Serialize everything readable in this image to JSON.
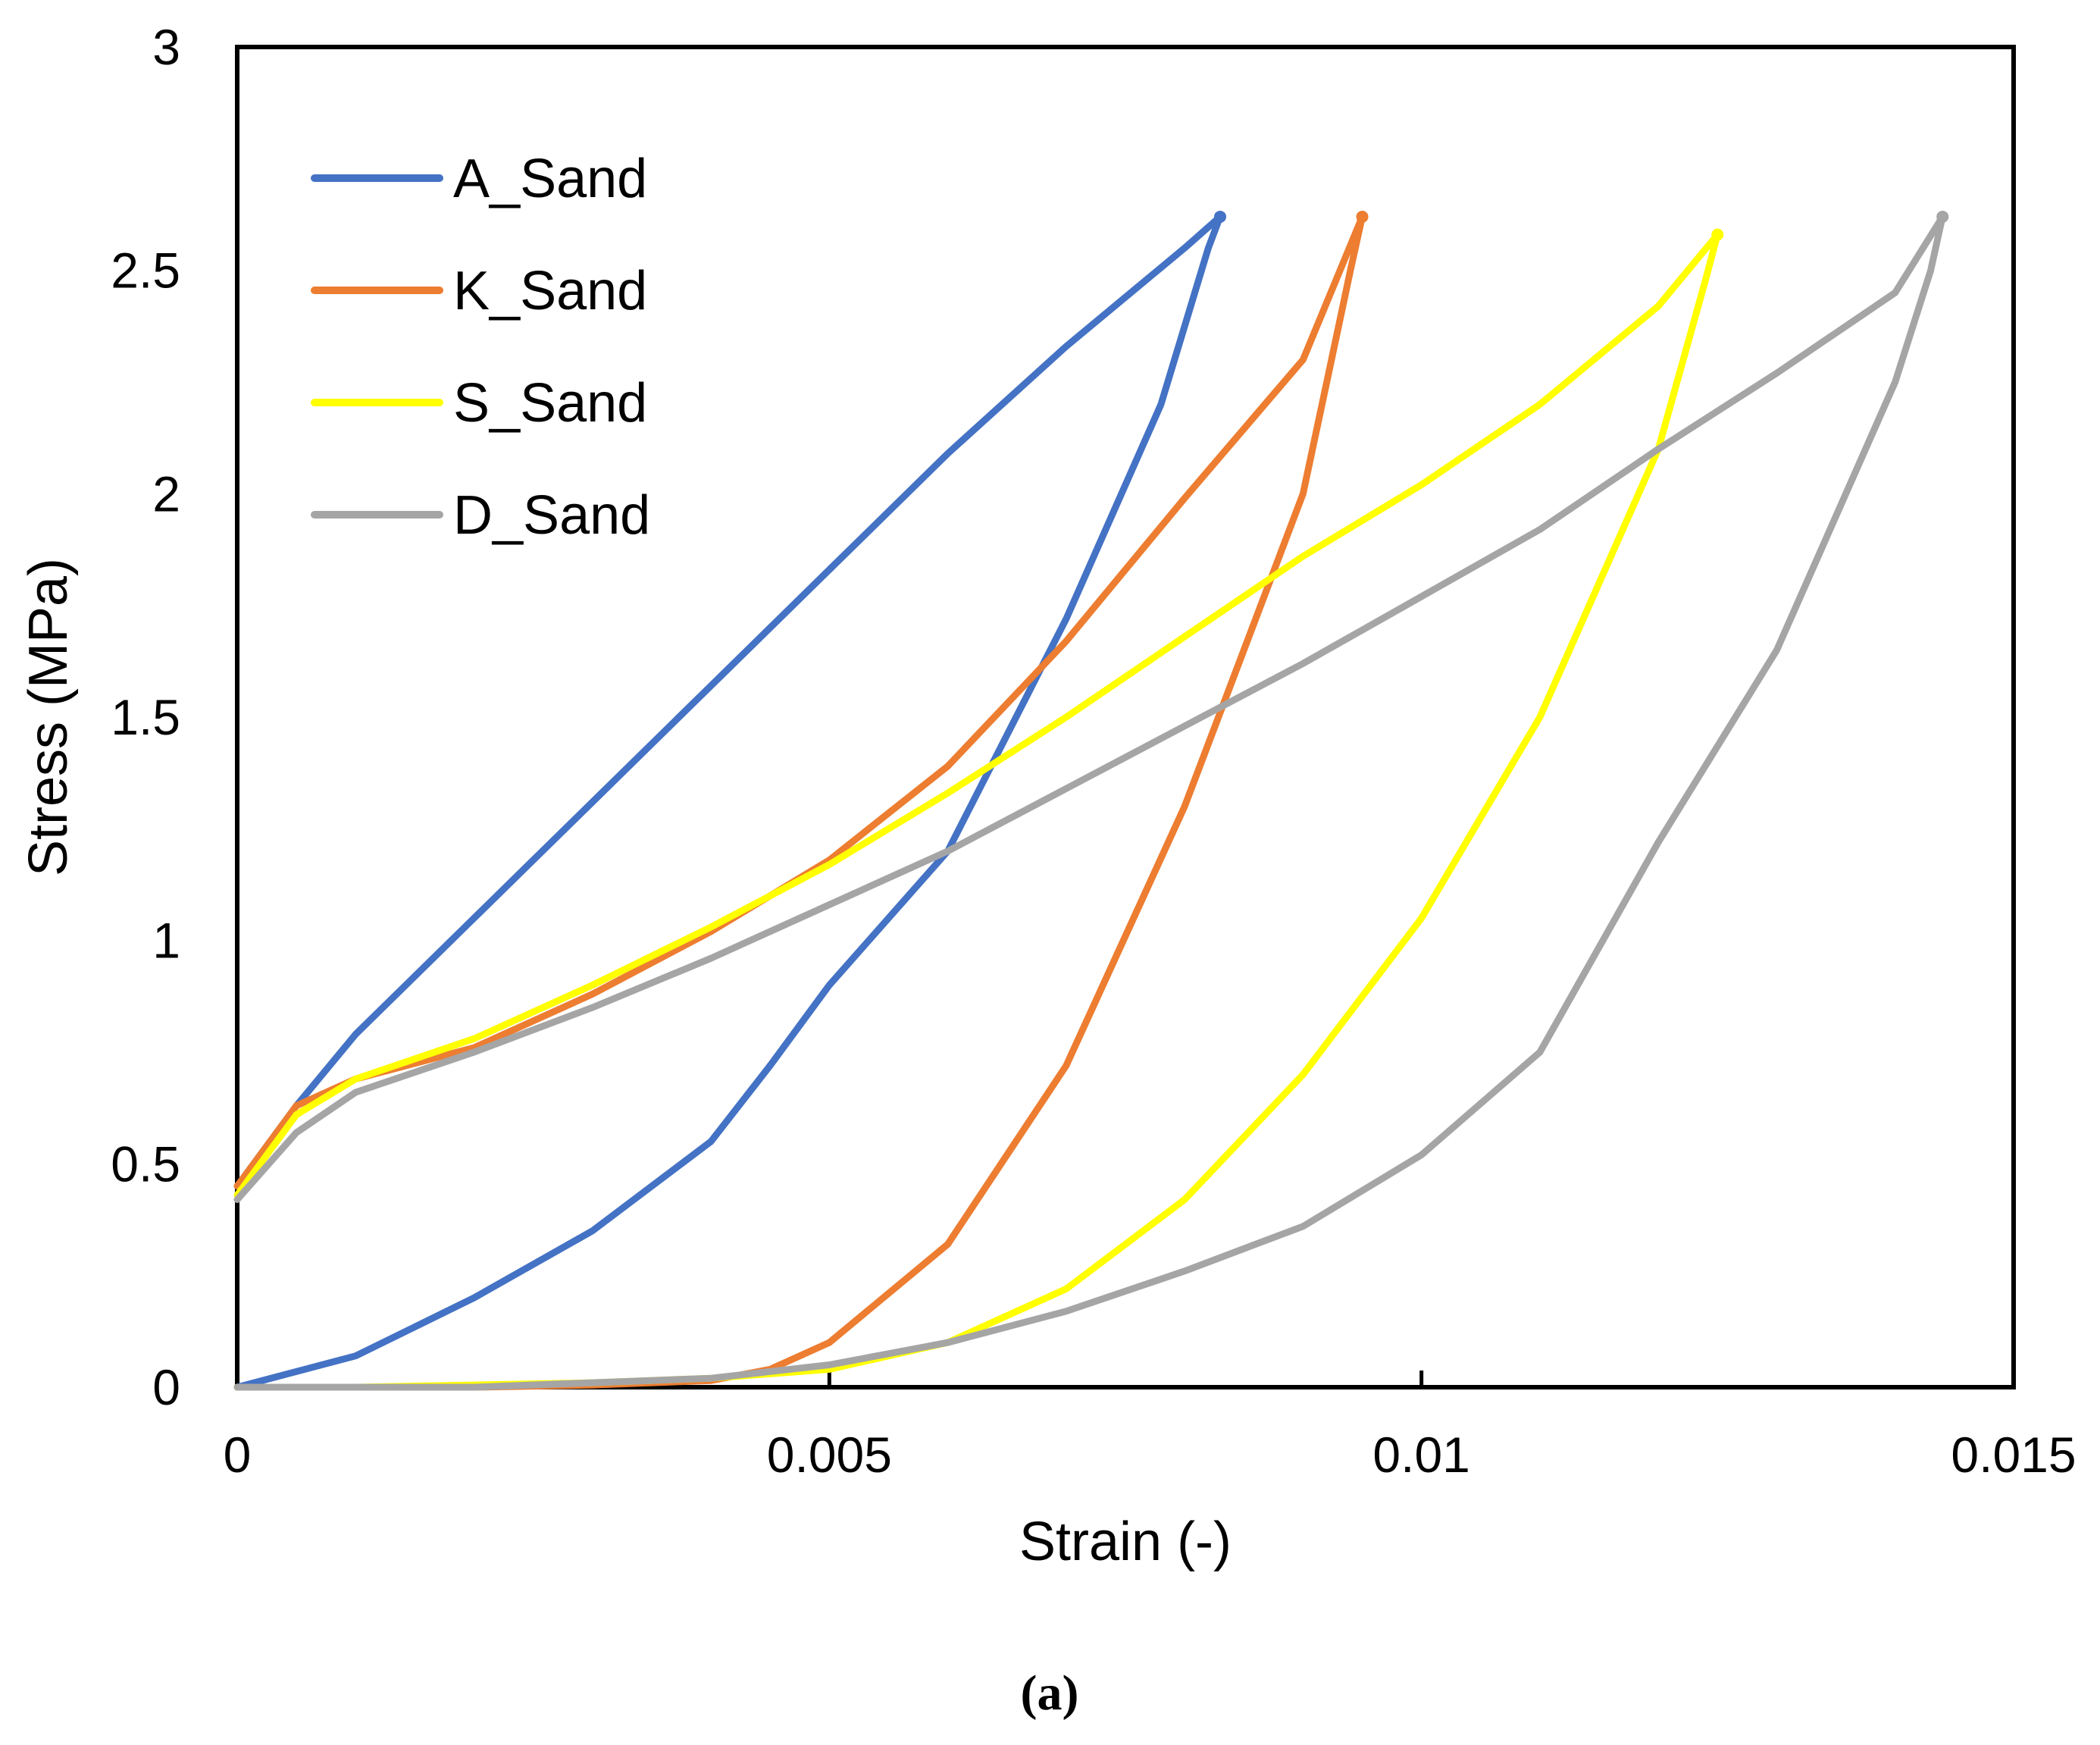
{
  "caption": "(a)",
  "chart_data": {
    "type": "line",
    "title": "",
    "xlabel": "Strain (-)",
    "ylabel": "Stress (MPa)",
    "xlim": [
      0,
      0.015
    ],
    "ylim": [
      0,
      3
    ],
    "x_ticks": [
      0,
      0.005,
      0.01,
      0.015
    ],
    "x_tick_labels": [
      "0",
      "0.005",
      "0.01",
      "0.015"
    ],
    "y_ticks": [
      0,
      0.5,
      1,
      1.5,
      2,
      2.5,
      3
    ],
    "y_tick_labels": [
      "0",
      "0.5",
      "1",
      "1.5",
      "2",
      "2.5",
      "3"
    ],
    "grid": false,
    "legend_position": "top-left",
    "series": [
      {
        "name": "A_Sand",
        "color": "#4472C4",
        "x": [
          0,
          0.0005,
          0.001,
          0.0015,
          0.002,
          0.003,
          0.004,
          0.005,
          0.006,
          0.007,
          0.008,
          0.0083,
          0.0082,
          0.0078,
          0.007,
          0.006,
          0.005,
          0.0045,
          0.004,
          0.003,
          0.002,
          0.001,
          0
        ],
        "y": [
          0.45,
          0.63,
          0.79,
          0.92,
          1.05,
          1.31,
          1.57,
          1.83,
          2.09,
          2.33,
          2.55,
          2.62,
          2.55,
          2.2,
          1.72,
          1.2,
          0.9,
          0.72,
          0.55,
          0.35,
          0.2,
          0.07,
          0
        ],
        "end_marker": true
      },
      {
        "name": "K_Sand",
        "color": "#ED7D31",
        "x": [
          0,
          0.0005,
          0.001,
          0.002,
          0.003,
          0.004,
          0.005,
          0.006,
          0.007,
          0.008,
          0.009,
          0.0095,
          0.0094,
          0.0092,
          0.009,
          0.0085,
          0.008,
          0.007,
          0.006,
          0.005,
          0.0045,
          0.004,
          0.003,
          0.002,
          0.001,
          0
        ],
        "y": [
          0.45,
          0.63,
          0.69,
          0.76,
          0.88,
          1.02,
          1.18,
          1.39,
          1.67,
          1.99,
          2.3,
          2.62,
          2.5,
          2.25,
          2.0,
          1.65,
          1.3,
          0.72,
          0.32,
          0.1,
          0.04,
          0.015,
          0.005,
          0,
          0,
          0
        ],
        "end_marker": true
      },
      {
        "name": "S_Sand",
        "color": "#FFFF00",
        "x": [
          0,
          0.0005,
          0.001,
          0.002,
          0.003,
          0.004,
          0.005,
          0.006,
          0.007,
          0.008,
          0.009,
          0.01,
          0.011,
          0.012,
          0.0125,
          0.0124,
          0.012,
          0.011,
          0.01,
          0.009,
          0.008,
          0.007,
          0.006,
          0.005,
          0.004,
          0.003,
          0.002,
          0.001,
          0
        ],
        "y": [
          0.43,
          0.61,
          0.69,
          0.78,
          0.9,
          1.03,
          1.17,
          1.33,
          1.5,
          1.68,
          1.86,
          2.02,
          2.2,
          2.42,
          2.58,
          2.48,
          2.1,
          1.5,
          1.05,
          0.7,
          0.42,
          0.22,
          0.1,
          0.04,
          0.02,
          0.01,
          0.005,
          0,
          0
        ],
        "end_marker": true
      },
      {
        "name": "D_Sand",
        "color": "#A5A5A5",
        "x": [
          0,
          0.0005,
          0.001,
          0.002,
          0.003,
          0.004,
          0.005,
          0.006,
          0.007,
          0.008,
          0.009,
          0.01,
          0.011,
          0.012,
          0.013,
          0.014,
          0.0144,
          0.0143,
          0.014,
          0.013,
          0.012,
          0.011,
          0.01,
          0.009,
          0.008,
          0.007,
          0.006,
          0.005,
          0.004,
          0.003,
          0.002,
          0.001,
          0
        ],
        "y": [
          0.42,
          0.57,
          0.66,
          0.75,
          0.85,
          0.96,
          1.08,
          1.2,
          1.34,
          1.48,
          1.62,
          1.77,
          1.92,
          2.1,
          2.27,
          2.45,
          2.62,
          2.5,
          2.25,
          1.65,
          1.22,
          0.75,
          0.52,
          0.36,
          0.26,
          0.17,
          0.1,
          0.05,
          0.02,
          0.01,
          0,
          0,
          0
        ],
        "end_marker": true
      }
    ]
  }
}
